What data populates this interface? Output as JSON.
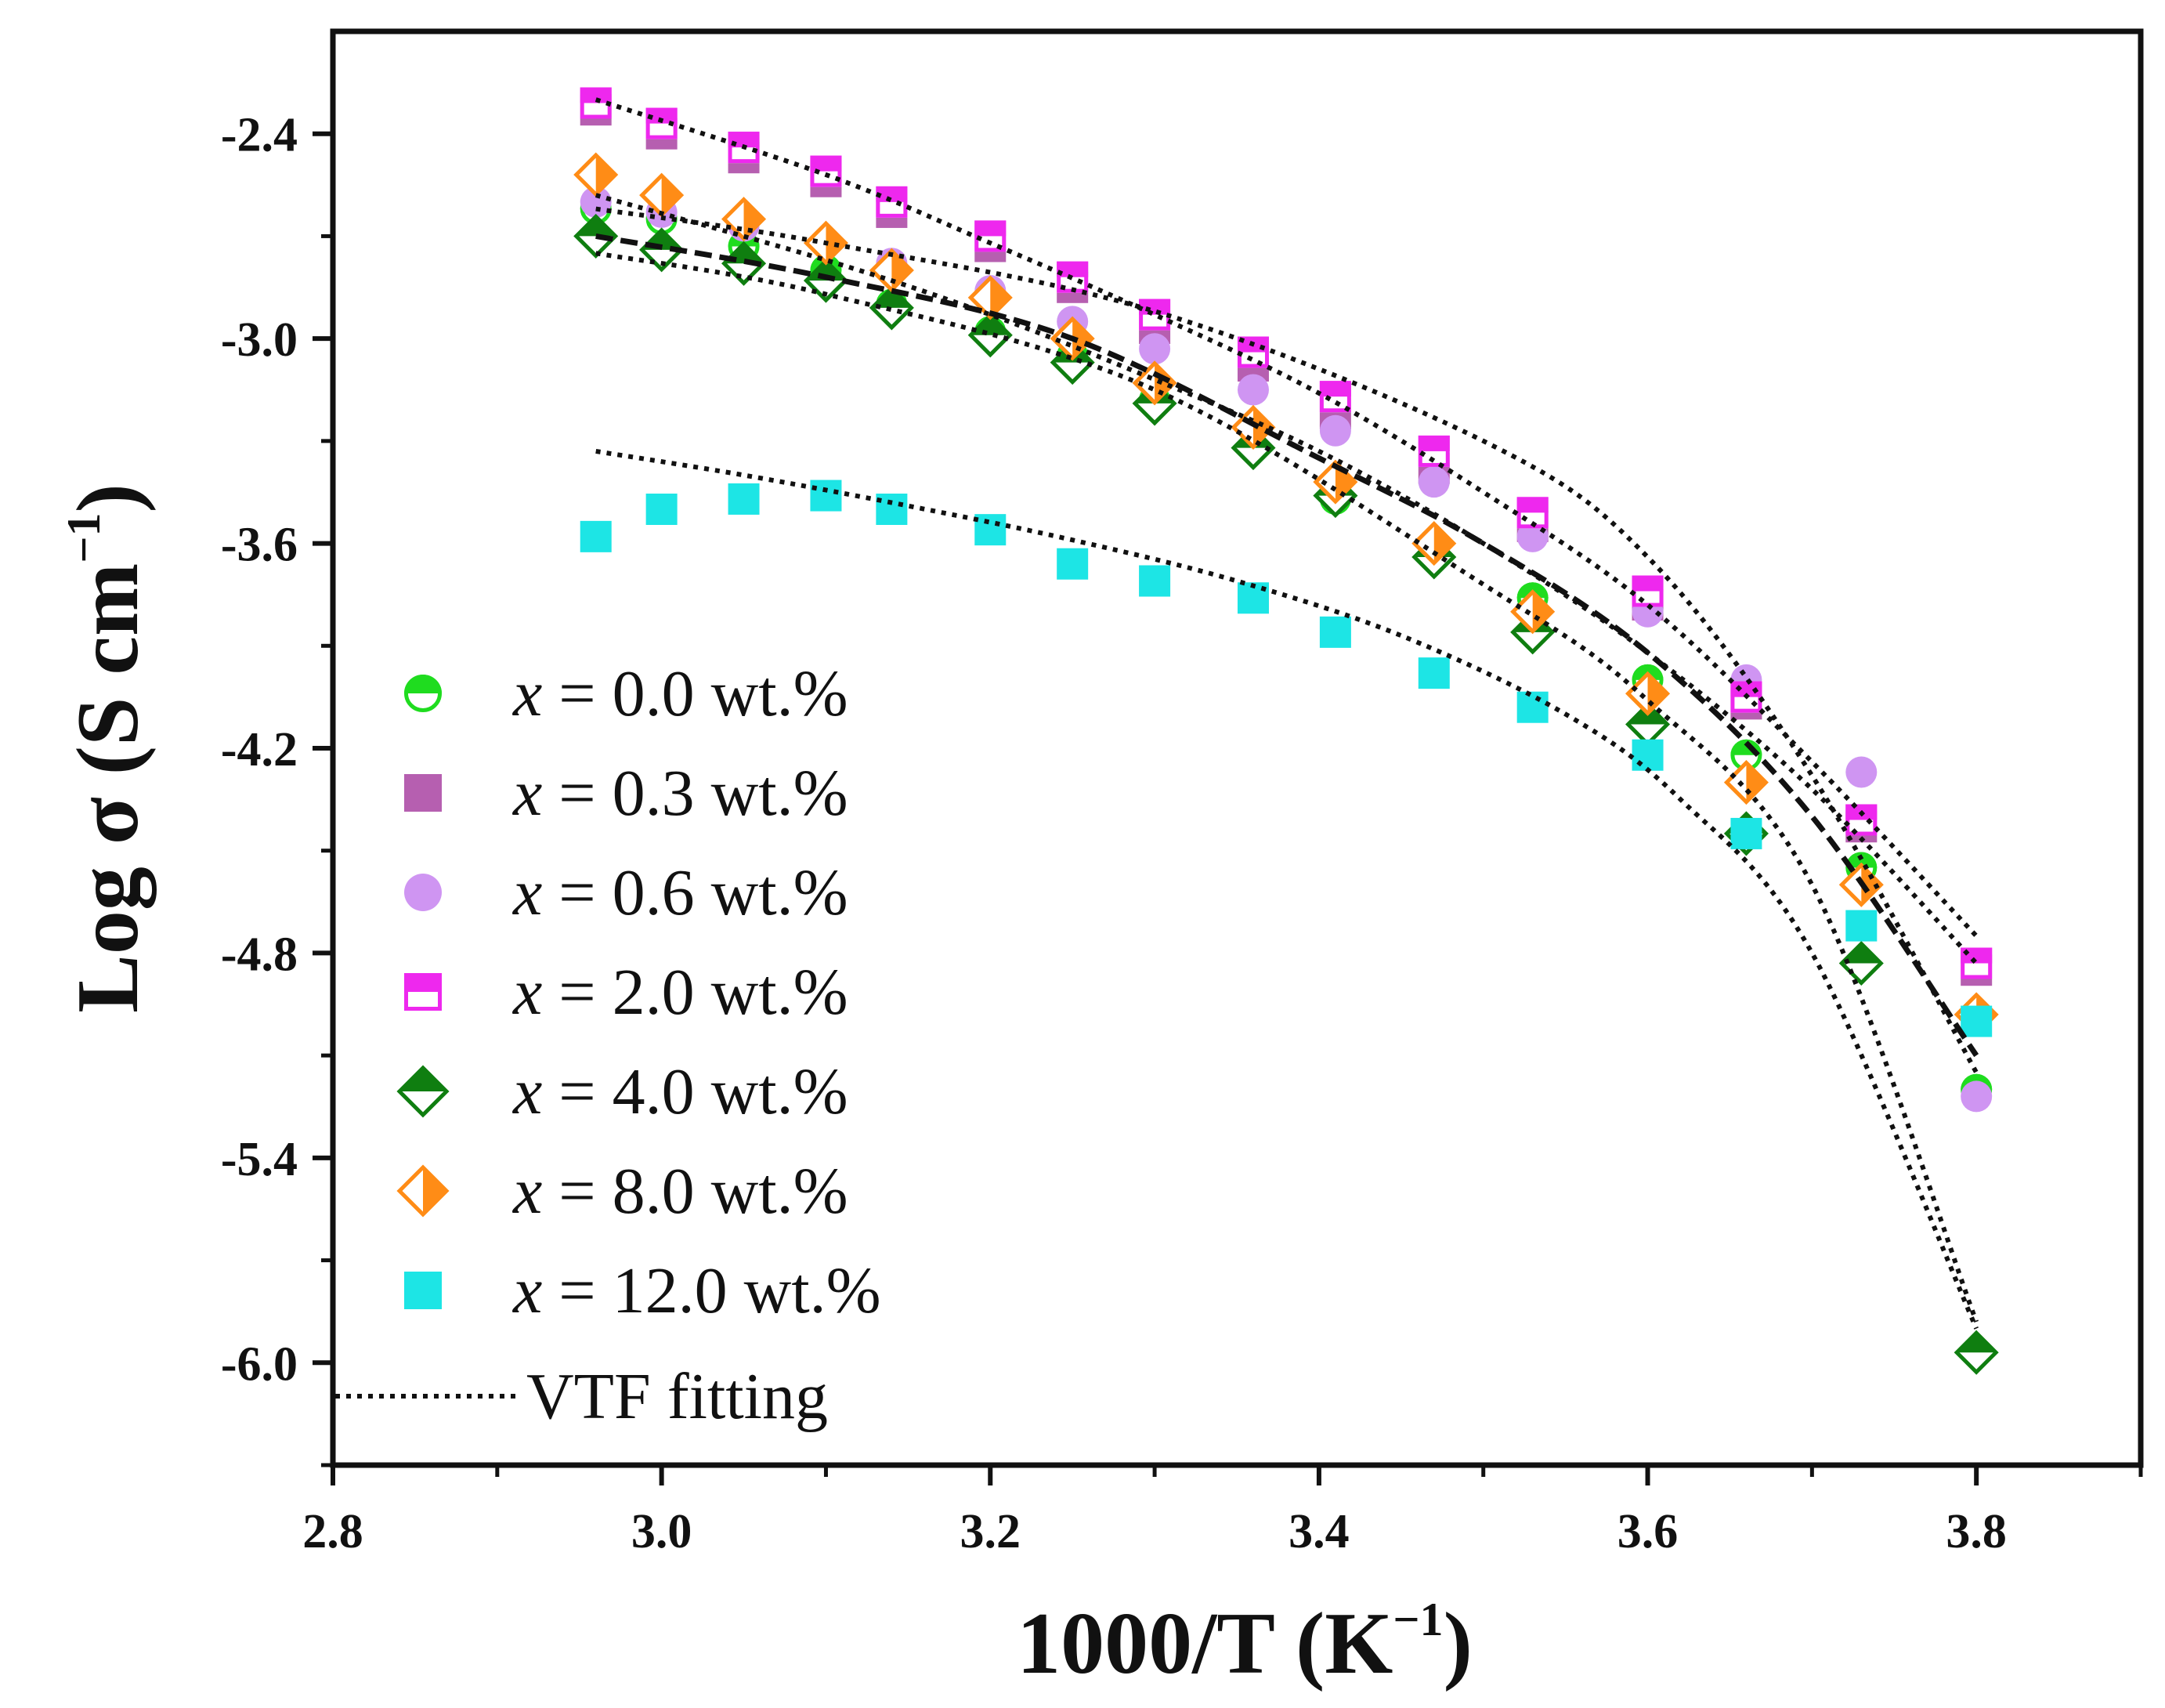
{
  "chart_data": {
    "type": "scatter",
    "title": "",
    "xlabel": {
      "main": "1000/T (K",
      "sup": "−1",
      "close": ")"
    },
    "ylabel": {
      "main": "Log σ (S cm",
      "sup": "−1",
      "close": ")"
    },
    "xlim": [
      2.8,
      3.9
    ],
    "ylim": [
      -6.3,
      -2.1
    ],
    "x_ticks": [
      "2.8",
      "3.0",
      "3.2",
      "3.4",
      "3.6",
      "3.8"
    ],
    "y_ticks": [
      "-2.4",
      "-3.0",
      "-3.6",
      "-4.2",
      "-4.8",
      "-5.4",
      "-6.0"
    ],
    "grid": false,
    "legend_position": "left",
    "x": [
      2.96,
      3.0,
      3.05,
      3.1,
      3.14,
      3.2,
      3.25,
      3.3,
      3.36,
      3.41,
      3.47,
      3.53,
      3.6,
      3.66,
      3.73,
      3.8
    ],
    "series": [
      {
        "name": "x = 0.0 wt.%",
        "var": "x",
        "text": " = 0.0 wt.%",
        "marker": "circle-half",
        "color": "#1fdc1f",
        "values": [
          -2.62,
          -2.65,
          -2.73,
          -2.8,
          -2.9,
          -2.98,
          -3.05,
          -3.18,
          -3.32,
          -3.47,
          -3.6,
          -3.76,
          -4.0,
          -4.22,
          -4.55,
          -5.2
        ]
      },
      {
        "name": "x = 0.3 wt.%",
        "var": "x",
        "text": " = 0.3 wt.%",
        "marker": "square",
        "color": "#b65fb0",
        "values": [
          -2.33,
          -2.4,
          -2.47,
          -2.54,
          -2.63,
          -2.73,
          -2.85,
          -2.97,
          -3.08,
          -3.22,
          -3.38,
          -3.55,
          -3.78,
          -4.07,
          -4.43,
          -4.85
        ]
      },
      {
        "name": "x = 0.6 wt.%",
        "var": "x",
        "text": " = 0.6 wt.%",
        "marker": "circle",
        "color": "#cf95f2",
        "values": [
          -2.6,
          -2.63,
          -2.67,
          -2.72,
          -2.78,
          -2.86,
          -2.95,
          -3.03,
          -3.15,
          -3.27,
          -3.42,
          -3.58,
          -3.8,
          -4.0,
          -4.27,
          -5.22
        ]
      },
      {
        "name": "x = 2.0 wt.%",
        "var": "x",
        "text": " = 2.0 wt.%",
        "marker": "square-half",
        "color": "#ee28ee",
        "values": [
          -2.31,
          -2.37,
          -2.44,
          -2.51,
          -2.6,
          -2.7,
          -2.82,
          -2.93,
          -3.04,
          -3.17,
          -3.33,
          -3.51,
          -3.74,
          -4.05,
          -4.41,
          -4.83
        ]
      },
      {
        "name": "x = 4.0 wt.%",
        "var": "x",
        "text": " = 4.0 wt.%",
        "marker": "diamond-half",
        "color": "#0f7e10",
        "values": [
          -2.7,
          -2.74,
          -2.78,
          -2.83,
          -2.91,
          -2.99,
          -3.07,
          -3.19,
          -3.32,
          -3.46,
          -3.64,
          -3.86,
          -4.13,
          -4.45,
          -4.83,
          -5.97
        ]
      },
      {
        "name": "x = 8.0 wt.%",
        "var": "x",
        "text": " = 8.0 wt.%",
        "marker": "diamond-lr",
        "color": "#ff8c16",
        "values": [
          -2.52,
          -2.58,
          -2.65,
          -2.72,
          -2.8,
          -2.88,
          -3.0,
          -3.13,
          -3.26,
          -3.42,
          -3.6,
          -3.8,
          -4.04,
          -4.3,
          -4.6,
          -4.98
        ]
      },
      {
        "name": "x = 12.0 wt.%",
        "var": "x",
        "text": " = 12.0 wt.%",
        "marker": "square",
        "color": "#1de5e5",
        "values": [
          -3.58,
          -3.5,
          -3.47,
          -3.46,
          -3.5,
          -3.56,
          -3.66,
          -3.71,
          -3.76,
          -3.86,
          -3.98,
          -4.08,
          -4.22,
          -4.45,
          -4.72,
          -5.0
        ]
      }
    ],
    "fits": [
      {
        "name": "VTF fit (0.0 wt.%)",
        "style": "dash",
        "x": [
          2.96,
          3.1,
          3.25,
          3.4,
          3.5,
          3.6,
          3.7,
          3.8
        ],
        "y": [
          -2.7,
          -2.82,
          -3.0,
          -3.35,
          -3.6,
          -3.92,
          -4.4,
          -5.1
        ]
      },
      {
        "name": "VTF fit (0.3 wt.%)",
        "style": "dot",
        "x": [
          2.96,
          3.1,
          3.2,
          3.3,
          3.4,
          3.5,
          3.6,
          3.7,
          3.8
        ],
        "y": [
          -2.3,
          -2.52,
          -2.72,
          -2.93,
          -3.16,
          -3.45,
          -3.78,
          -4.24,
          -4.75
        ]
      },
      {
        "name": "VTF fit (0.6 wt.%)",
        "style": "dot",
        "x": [
          2.96,
          3.1,
          3.3,
          3.5,
          3.6,
          3.7,
          3.8
        ],
        "y": [
          -2.62,
          -2.72,
          -2.92,
          -3.3,
          -3.64,
          -4.28,
          -5.15
        ]
      },
      {
        "name": "VTF fit (4.0 wt.%)",
        "style": "dot",
        "x": [
          2.96,
          3.1,
          3.3,
          3.5,
          3.6,
          3.7,
          3.8
        ],
        "y": [
          -2.75,
          -2.87,
          -3.15,
          -3.72,
          -4.06,
          -4.6,
          -5.88
        ]
      },
      {
        "name": "VTF fit (8.0 wt.%)",
        "style": "dot",
        "x": [
          2.96,
          3.1,
          3.2,
          3.3,
          3.4,
          3.5,
          3.6,
          3.7,
          3.8
        ],
        "y": [
          -2.58,
          -2.77,
          -2.93,
          -3.12,
          -3.33,
          -3.6,
          -3.92,
          -4.32,
          -4.83
        ]
      },
      {
        "name": "VTF fit (12.0 wt.%)",
        "style": "dot",
        "x": [
          2.96,
          3.05,
          3.15,
          3.25,
          3.35,
          3.45,
          3.55,
          3.62,
          3.7,
          3.8
        ],
        "y": [
          -3.33,
          -3.4,
          -3.49,
          -3.59,
          -3.71,
          -3.87,
          -4.1,
          -4.35,
          -4.8,
          -5.9
        ]
      }
    ],
    "legend_fit_label": "VTF fitting"
  }
}
